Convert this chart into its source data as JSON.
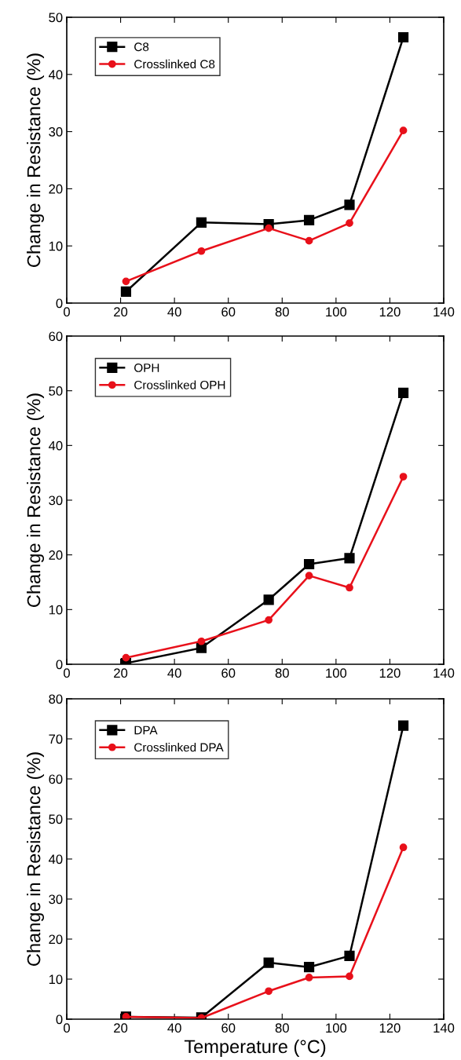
{
  "chart_data": [
    {
      "type": "line",
      "x": [
        22,
        50,
        75,
        90,
        105,
        125
      ],
      "ylabel": "Change in Resistance (%)",
      "xlim": [
        0,
        140
      ],
      "xticks": [
        0,
        20,
        40,
        60,
        80,
        100,
        120,
        140
      ],
      "ylim": [
        0,
        50
      ],
      "yticks": [
        0,
        10,
        20,
        30,
        40,
        50
      ],
      "legend": "top left",
      "grid": false,
      "series": [
        {
          "name": "C8",
          "color": "#000000",
          "marker": "square",
          "values": [
            2.0,
            14.1,
            13.8,
            14.5,
            17.2,
            46.5
          ]
        },
        {
          "name": "Crosslinked C8",
          "color": "#e8101a",
          "marker": "circle",
          "values": [
            3.8,
            9.1,
            13.1,
            10.9,
            14.0,
            30.2
          ]
        }
      ]
    },
    {
      "type": "line",
      "x": [
        22,
        50,
        75,
        90,
        105,
        125
      ],
      "ylabel": "Change in Resistance (%)",
      "xlim": [
        0,
        140
      ],
      "xticks": [
        0,
        20,
        40,
        60,
        80,
        100,
        120,
        140
      ],
      "ylim": [
        0,
        60
      ],
      "yticks": [
        0,
        10,
        20,
        30,
        40,
        50,
        60
      ],
      "legend": "top left",
      "grid": false,
      "series": [
        {
          "name": "OPH",
          "color": "#000000",
          "marker": "square",
          "values": [
            0.2,
            3.0,
            11.8,
            18.3,
            19.4,
            49.6
          ]
        },
        {
          "name": "Crosslinked OPH",
          "color": "#e8101a",
          "marker": "circle",
          "values": [
            1.2,
            4.2,
            8.1,
            16.2,
            14.0,
            34.3
          ]
        }
      ]
    },
    {
      "type": "line",
      "x": [
        22,
        50,
        75,
        90,
        105,
        125
      ],
      "xlabel": "Temperature (°C)",
      "ylabel": "Change in Resistance (%)",
      "xlim": [
        0,
        140
      ],
      "xticks": [
        0,
        20,
        40,
        60,
        80,
        100,
        120,
        140
      ],
      "ylim": [
        0,
        80
      ],
      "yticks": [
        0,
        10,
        20,
        30,
        40,
        50,
        60,
        70,
        80
      ],
      "legend": "top left",
      "grid": false,
      "series": [
        {
          "name": "DPA",
          "color": "#000000",
          "marker": "square",
          "values": [
            0.6,
            0.4,
            14.1,
            13.0,
            15.8,
            73.3
          ]
        },
        {
          "name": "Crosslinked DPA",
          "color": "#e8101a",
          "marker": "circle",
          "values": [
            0.6,
            0.3,
            7.0,
            10.4,
            10.7,
            42.9
          ]
        }
      ]
    }
  ]
}
